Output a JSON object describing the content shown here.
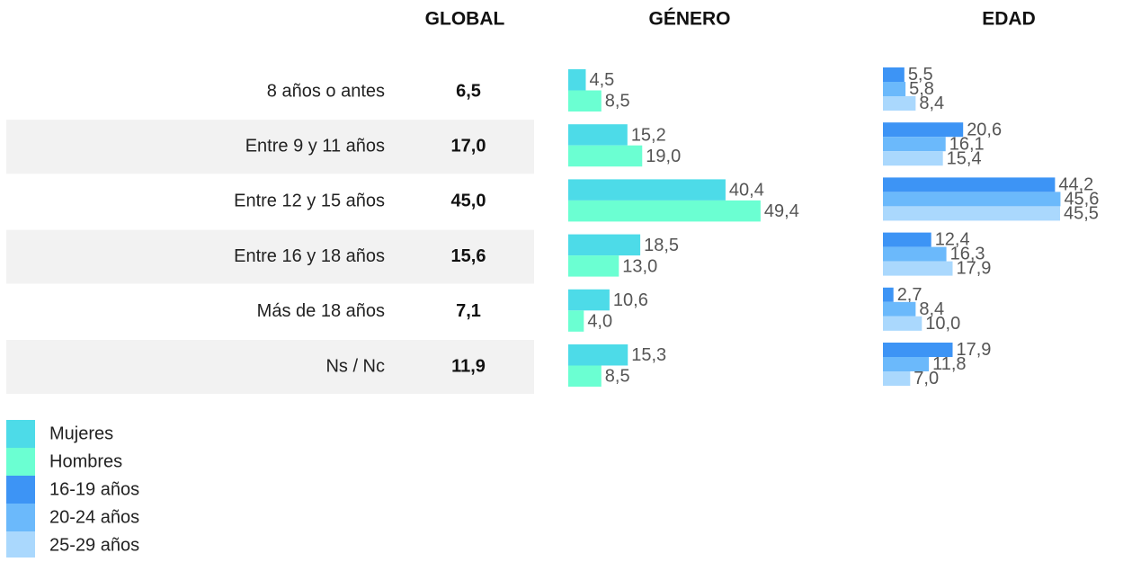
{
  "chart_data": {
    "type": "bar",
    "column_headers": [
      "GLOBAL",
      "GÉNERO",
      "EDAD"
    ],
    "categories": [
      "8 años o antes",
      "Entre 9 y 11 años",
      "Entre 12 y 15 años",
      "Entre 16 y 18 años",
      "Más de 18 años",
      "Ns / Nc"
    ],
    "global": {
      "values": [
        6.5,
        17.0,
        45.0,
        15.6,
        7.1,
        11.9
      ],
      "value_labels": [
        "6,5",
        "17,0",
        "45,0",
        "15,6",
        "7,1",
        "11,9"
      ]
    },
    "series": [
      {
        "name": "Mujeres",
        "color": "#4ddbe8",
        "group": "GÉNERO",
        "values": [
          4.5,
          15.2,
          40.4,
          18.5,
          10.6,
          15.3
        ],
        "value_labels": [
          "4,5",
          "15,2",
          "40,4",
          "18,5",
          "10,6",
          "15,3"
        ]
      },
      {
        "name": "Hombres",
        "color": "#6bffd2",
        "group": "GÉNERO",
        "values": [
          8.5,
          19.0,
          49.4,
          13.0,
          4.0,
          8.5
        ],
        "value_labels": [
          "8,5",
          "19,0",
          "49,4",
          "13,0",
          "4,0",
          "8,5"
        ]
      },
      {
        "name": "16-19 años",
        "color": "#3d94f5",
        "group": "EDAD",
        "values": [
          5.5,
          20.6,
          44.2,
          12.4,
          2.7,
          17.9
        ],
        "value_labels": [
          "5,5",
          "20,6",
          "44,2",
          "12,4",
          "2,7",
          "17,9"
        ]
      },
      {
        "name": "20-24 años",
        "color": "#6bb9fb",
        "group": "EDAD",
        "values": [
          5.8,
          16.1,
          45.6,
          16.3,
          8.4,
          11.8
        ],
        "value_labels": [
          "5,8",
          "16,1",
          "45,6",
          "16,3",
          "8,4",
          "11,8"
        ]
      },
      {
        "name": "25-29 años",
        "color": "#aad8fd",
        "group": "EDAD",
        "values": [
          8.4,
          15.4,
          45.5,
          17.9,
          10.0,
          7.0
        ],
        "value_labels": [
          "8,4",
          "15,4",
          "45,5",
          "17,9",
          "10,0",
          "7,0"
        ]
      }
    ]
  }
}
